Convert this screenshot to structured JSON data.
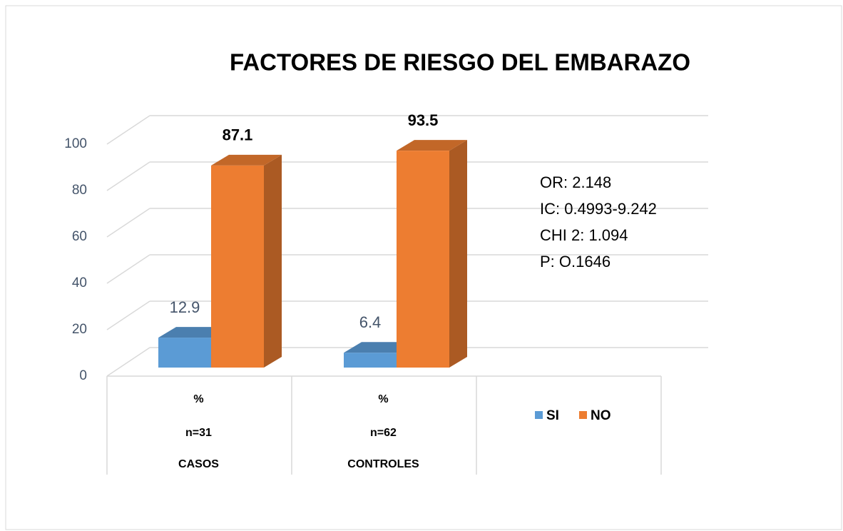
{
  "chart_data": {
    "type": "bar3d",
    "title": "FACTORES  DE RIESGO DEL EMBARAZO",
    "categories": [
      [
        "%",
        "n=31",
        "CASOS"
      ],
      [
        "%",
        "n=62",
        "CONTROLES"
      ]
    ],
    "series": [
      {
        "name": "SI",
        "color": "#5b9bd5",
        "values": [
          12.9,
          6.4
        ]
      },
      {
        "name": "NO",
        "color": "#ed7d31",
        "values": [
          87.1,
          93.5
        ]
      }
    ],
    "ylim": [
      0,
      100
    ],
    "yticks": [
      0,
      20,
      40,
      60,
      80,
      100
    ],
    "grid": true,
    "annotations": [
      "OR: 2.148",
      "IC: 0.4993-9.242",
      "CHI 2: 1.094",
      "P: O.1646"
    ]
  }
}
